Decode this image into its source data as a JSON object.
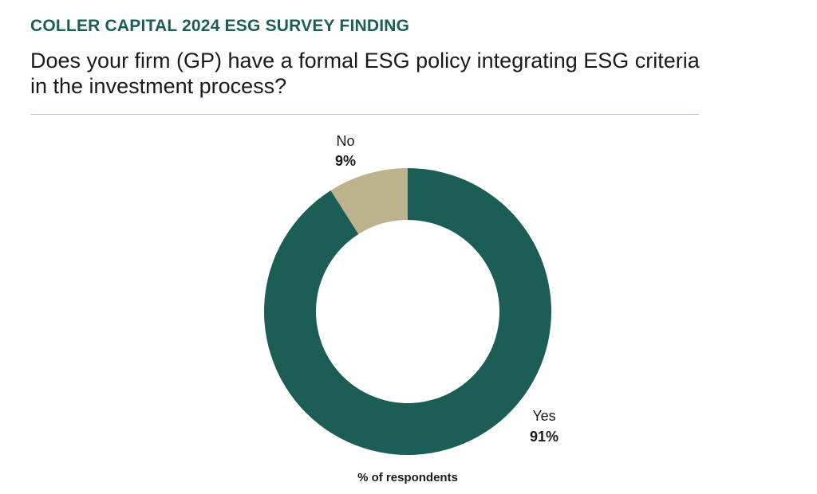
{
  "kicker": "COLLER CAPITAL 2024 ESG SURVEY FINDING",
  "question": "Does your firm (GP) have a formal ESG policy integrating ESG criteria in the investment process?",
  "colors": {
    "accent": "#1c5d55",
    "yes": "#1c5d55",
    "no": "#bcb28c",
    "rule": "#c9c3a6"
  },
  "chart_data": {
    "type": "pie",
    "variant": "donut",
    "title": "",
    "caption": "% of respondents",
    "slices": [
      {
        "label": "Yes",
        "value": 91,
        "display": "91%",
        "color": "#1c5d55"
      },
      {
        "label": "No",
        "value": 9,
        "display": "9%",
        "color": "#bcb28c"
      }
    ],
    "start": "12 o'clock",
    "direction": "clockwise"
  }
}
